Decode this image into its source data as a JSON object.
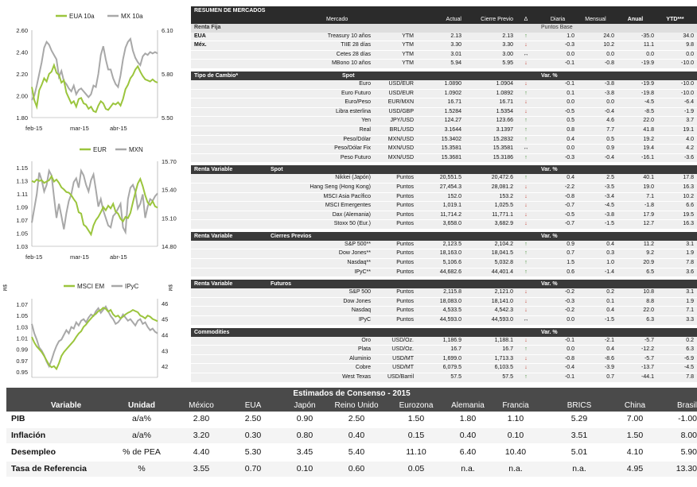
{
  "charts": [
    {
      "type": "line",
      "legend": [
        "EUA 10a",
        "MX 10a"
      ],
      "colors": {
        "series1": "#9bc53d",
        "series2": "#a8a8a8"
      },
      "left_ticks": [
        "2.60",
        "2.40",
        "2.20",
        "2.00",
        "1.80"
      ],
      "right_ticks": [
        "6.10",
        "5.80",
        "5.50"
      ],
      "x_ticks": [
        "feb-15",
        "mar-15",
        "abr-15"
      ],
      "left_range": [
        1.8,
        2.6
      ],
      "right_range": [
        5.5,
        6.1
      ],
      "series1": [
        2.08,
        1.96,
        1.9,
        2.05,
        2.1,
        2.16,
        2.13,
        2.2,
        2.22,
        2.28,
        2.21,
        2.19,
        2.12,
        2.14,
        2.03,
        1.98,
        1.93,
        1.95,
        1.9,
        1.97,
        1.98,
        1.93,
        1.92,
        1.88,
        1.9,
        1.86,
        1.85,
        1.91,
        1.95,
        1.93,
        1.88,
        1.87,
        1.9,
        1.93,
        1.92,
        1.94,
        1.91,
        1.97,
        2.06,
        2.1,
        2.16,
        2.19,
        2.24,
        2.27,
        2.22,
        2.18,
        2.15,
        2.14,
        2.13,
        2.15,
        2.13,
        2.12
      ],
      "series2": [
        5.62,
        5.65,
        5.72,
        5.8,
        5.88,
        5.98,
        6.02,
        6.0,
        5.96,
        5.93,
        5.9,
        5.78,
        5.82,
        5.75,
        5.73,
        5.7,
        5.68,
        5.72,
        5.66,
        5.69,
        5.7,
        5.68,
        5.66,
        5.64,
        5.66,
        5.72,
        5.71,
        5.8,
        5.93,
        5.99,
        5.9,
        5.83,
        5.83,
        5.77,
        5.73,
        5.71,
        5.79,
        5.9,
        5.98,
        6.02,
        6.04,
        5.96,
        5.91,
        5.88,
        5.86,
        5.92,
        5.94,
        5.93,
        5.95,
        5.94,
        5.95,
        5.94
      ]
    },
    {
      "type": "line",
      "legend": [
        "EUR",
        "MXN"
      ],
      "colors": {
        "series1": "#9bc53d",
        "series2": "#a8a8a8"
      },
      "left_ticks": [
        "1.15",
        "1.13",
        "1.11",
        "1.09",
        "1.07",
        "1.05",
        "1.03"
      ],
      "right_ticks": [
        "15.70",
        "15.40",
        "15.10",
        "14.80"
      ],
      "x_ticks": [
        "feb-15",
        "mar-15",
        "abr-15"
      ],
      "left_range": [
        1.03,
        1.16
      ],
      "right_range": [
        14.8,
        15.7
      ],
      "series1": [
        1.13,
        1.128,
        1.132,
        1.13,
        1.131,
        1.127,
        1.129,
        1.131,
        1.137,
        1.129,
        1.132,
        1.127,
        1.12,
        1.117,
        1.113,
        1.112,
        1.108,
        1.102,
        1.097,
        1.082,
        1.08,
        1.063,
        1.06,
        1.054,
        1.048,
        1.062,
        1.07,
        1.075,
        1.082,
        1.09,
        1.085,
        1.092,
        1.088,
        1.095,
        1.083,
        1.08,
        1.072,
        1.068,
        1.075,
        1.073,
        1.081,
        1.097,
        1.112,
        1.126,
        1.133,
        1.122,
        1.108,
        1.097,
        1.093,
        1.099,
        1.091,
        1.089
      ],
      "series2": [
        15.05,
        15.2,
        15.35,
        15.58,
        15.5,
        15.38,
        15.45,
        15.6,
        15.55,
        15.32,
        15.1,
        15.25,
        15.12,
        14.98,
        15.15,
        15.28,
        15.35,
        15.48,
        15.52,
        15.42,
        15.6,
        15.55,
        15.45,
        15.38,
        15.5,
        15.56,
        15.4,
        15.22,
        15.3,
        15.18,
        15.1,
        15.02,
        15.0,
        15.12,
        15.15,
        15.2,
        15.25,
        15.0,
        14.95,
        15.3,
        15.42,
        15.45,
        15.38,
        15.2,
        15.25,
        15.35,
        15.1,
        15.22,
        15.3,
        15.28,
        15.33,
        15.36
      ]
    },
    {
      "type": "line",
      "legend": [
        "MSCI EM",
        "IPyC"
      ],
      "legend_marks": [
        "$M",
        "$M"
      ],
      "colors": {
        "series1": "#9bc53d",
        "series2": "#a8a8a8"
      },
      "left_ticks": [
        "1.07",
        "1.05",
        "1.03",
        "1.01",
        "0.99",
        "0.97",
        "0.95"
      ],
      "right_ticks": [
        "46",
        "45",
        "44",
        "43",
        "42"
      ],
      "left_range": [
        0.94,
        1.08
      ],
      "right_range": [
        41.3,
        46.3
      ],
      "series1": [
        1.012,
        1.002,
        0.995,
        0.99,
        0.985,
        0.978,
        0.97,
        0.962,
        0.958,
        0.96,
        0.955,
        0.965,
        0.978,
        0.985,
        0.99,
        0.995,
        1.0,
        1.005,
        1.012,
        1.018,
        1.022,
        1.03,
        1.034,
        1.04,
        1.045,
        1.05,
        1.053,
        1.058,
        1.06,
        1.064,
        1.062,
        1.057,
        1.06,
        1.052,
        1.048,
        1.05,
        1.045,
        1.048,
        1.052,
        1.055,
        1.057,
        1.06,
        1.058,
        1.056,
        1.05,
        1.048,
        1.045,
        1.05,
        1.048,
        1.044,
        1.042,
        1.04
      ],
      "series2": [
        44.7,
        44.1,
        43.7,
        43.2,
        43.0,
        42.7,
        42.3,
        42.0,
        42.4,
        42.9,
        43.3,
        43.6,
        43.7,
        44.0,
        44.3,
        44.1,
        44.5,
        44.4,
        44.8,
        44.6,
        44.9,
        45.0,
        44.8,
        45.1,
        45.3,
        45.2,
        45.5,
        45.7,
        45.4,
        45.6,
        45.8,
        45.5,
        45.2,
        45.0,
        44.7,
        44.8,
        45.0,
        45.3,
        45.1,
        44.9,
        45.0,
        44.8,
        44.6,
        44.9,
        45.0,
        44.7,
        44.8,
        44.5,
        44.3,
        44.4,
        44.2,
        44.1
      ]
    }
  ],
  "market": {
    "title": "RESUMEN DE MERCADOS",
    "headers": {
      "mercado": "Mercado",
      "actual": "Actual",
      "cierre": "Cierre Previo",
      "delta": "Δ",
      "diaria": "Diaria",
      "mensual": "Mensual",
      "anual": "Anual",
      "ytd": "YTD***"
    },
    "sections": [
      {
        "title": "Renta Fija",
        "subtitle": "",
        "right_label": "Puntos Base",
        "rows": [
          {
            "pre": "EUA",
            "name": "Treasury 10 años",
            "unit": "YTM",
            "actual": "2.13",
            "cierre": "2.13",
            "dir": "up",
            "d": "1.0",
            "m": "24.0",
            "a": "-35.0",
            "y": "34.0"
          },
          {
            "pre": "Méx.",
            "name": "TIIE 28 días",
            "unit": "YTM",
            "actual": "3.30",
            "cierre": "3.30",
            "dir": "down",
            "d": "-0.3",
            "m": "10.2",
            "a": "11.1",
            "y": "9.8"
          },
          {
            "pre": "",
            "name": "Cetes 28 días",
            "unit": "YTM",
            "actual": "3.01",
            "cierre": "3.00",
            "dir": "flat",
            "d": "0.0",
            "m": "0.0",
            "a": "0.0",
            "y": "0.0"
          },
          {
            "pre": "",
            "name": "MBono 10 años",
            "unit": "YTM",
            "actual": "5.94",
            "cierre": "5.95",
            "dir": "down",
            "d": "-0.1",
            "m": "-0.8",
            "a": "-19.9",
            "y": "-10.0"
          }
        ]
      },
      {
        "title": "Tipo de Cambio*",
        "subtitle": "Spot",
        "right_label": "Var. %",
        "rows": [
          {
            "pre": "",
            "name": "Euro",
            "unit": "USD/EUR",
            "actual": "1.0890",
            "cierre": "1.0904",
            "dir": "down",
            "d": "-0.1",
            "m": "-3.8",
            "a": "-19.9",
            "y": "-10.0"
          },
          {
            "pre": "",
            "name": "Euro Futuro",
            "unit": "USD/EUR",
            "actual": "1.0902",
            "cierre": "1.0892",
            "dir": "up",
            "d": "0.1",
            "m": "-3.8",
            "a": "-19.8",
            "y": "-10.0"
          },
          {
            "pre": "",
            "name": "Euro/Peso",
            "unit": "EUR/MXN",
            "actual": "16.71",
            "cierre": "16.71",
            "dir": "down",
            "d": "0.0",
            "m": "0.0",
            "a": "-4.5",
            "y": "-6.4"
          },
          {
            "pre": "",
            "name": "Libra esterlina",
            "unit": "USD/GBP",
            "actual": "1.5284",
            "cierre": "1.5354",
            "dir": "down",
            "d": "-0.5",
            "m": "-0.4",
            "a": "-8.5",
            "y": "-1.9"
          },
          {
            "pre": "",
            "name": "Yen",
            "unit": "JPY/USD",
            "actual": "124.27",
            "cierre": "123.66",
            "dir": "up",
            "d": "0.5",
            "m": "4.6",
            "a": "22.0",
            "y": "3.7"
          },
          {
            "pre": "",
            "name": "Real",
            "unit": "BRL/USD",
            "actual": "3.1644",
            "cierre": "3.1397",
            "dir": "up",
            "d": "0.8",
            "m": "7.7",
            "a": "41.8",
            "y": "19.1"
          },
          {
            "pre": "",
            "name": "Peso/Dólar",
            "unit": "MXN/USD",
            "actual": "15.3402",
            "cierre": "15.2832",
            "dir": "up",
            "d": "0.4",
            "m": "0.5",
            "a": "19.2",
            "y": "4.0"
          },
          {
            "pre": "",
            "name": "Peso/Dólar Fix",
            "unit": "MXN/USD",
            "actual": "15.3581",
            "cierre": "15.3581",
            "dir": "flat",
            "d": "0.0",
            "m": "0.9",
            "a": "19.4",
            "y": "4.2"
          },
          {
            "pre": "",
            "name": "Peso Futuro",
            "unit": "MXN/USD",
            "actual": "15.3681",
            "cierre": "15.3186",
            "dir": "up",
            "d": "-0.3",
            "m": "-0.4",
            "a": "-16.1",
            "y": "-3.6"
          }
        ]
      },
      {
        "title": "Renta Variable",
        "subtitle": "Spot",
        "right_label": "Var. %",
        "rows": [
          {
            "pre": "",
            "name": "Nikkei (Japón)",
            "unit": "Puntos",
            "actual": "20,551.5",
            "cierre": "20,472.6",
            "dir": "up",
            "d": "0.4",
            "m": "2.5",
            "a": "40.1",
            "y": "17.8"
          },
          {
            "pre": "",
            "name": "Hang Seng (Hong Kong)",
            "unit": "Puntos",
            "actual": "27,454.3",
            "cierre": "28,081.2",
            "dir": "down",
            "d": "-2.2",
            "m": "-3.5",
            "a": "19.0",
            "y": "16.3"
          },
          {
            "pre": "",
            "name": "MSCI Asia Pacífico",
            "unit": "Puntos",
            "actual": "152.0",
            "cierre": "153.2",
            "dir": "down",
            "d": "-0.8",
            "m": "-3.4",
            "a": "7.1",
            "y": "10.2"
          },
          {
            "pre": "",
            "name": "MSCI Emergentes",
            "unit": "Puntos",
            "actual": "1,019.1",
            "cierre": "1,025.5",
            "dir": "down",
            "d": "-0.7",
            "m": "-4.5",
            "a": "-1.8",
            "y": "6.6"
          },
          {
            "pre": "",
            "name": "Dax (Alemania)",
            "unit": "Puntos",
            "actual": "11,714.2",
            "cierre": "11,771.1",
            "dir": "down",
            "d": "-0.5",
            "m": "-3.8",
            "a": "17.9",
            "y": "19.5"
          },
          {
            "pre": "",
            "name": "Stoxx 50 (Eur.)",
            "unit": "Puntos",
            "actual": "3,658.0",
            "cierre": "3,682.9",
            "dir": "down",
            "d": "-0.7",
            "m": "-1.5",
            "a": "12.7",
            "y": "16.3"
          }
        ]
      },
      {
        "title": "Renta Variable",
        "subtitle": "Cierres Previos",
        "right_label": "Var. %",
        "rows": [
          {
            "pre": "",
            "name": "S&P 500**",
            "unit": "Puntos",
            "actual": "2,123.5",
            "cierre": "2,104.2",
            "dir": "up",
            "d": "0.9",
            "m": "0.4",
            "a": "11.2",
            "y": "3.1"
          },
          {
            "pre": "",
            "name": "Dow Jones**",
            "unit": "Puntos",
            "actual": "18,163.0",
            "cierre": "18,041.5",
            "dir": "up",
            "d": "0.7",
            "m": "0.3",
            "a": "9.2",
            "y": "1.9"
          },
          {
            "pre": "",
            "name": "Nasdaq**",
            "unit": "Puntos",
            "actual": "5,106.6",
            "cierre": "5,032.8",
            "dir": "up",
            "d": "1.5",
            "m": "1.0",
            "a": "20.9",
            "y": "7.8"
          },
          {
            "pre": "",
            "name": "IPyC**",
            "unit": "Puntos",
            "actual": "44,682.6",
            "cierre": "44,401.4",
            "dir": "up",
            "d": "0.6",
            "m": "-1.4",
            "a": "6.5",
            "y": "3.6"
          }
        ]
      },
      {
        "title": "Renta Variable",
        "subtitle": "Futuros",
        "right_label": "Var. %",
        "rows": [
          {
            "pre": "",
            "name": "S&P 500",
            "unit": "Puntos",
            "actual": "2,115.8",
            "cierre": "2,121.0",
            "dir": "down",
            "d": "-0.2",
            "m": "0.2",
            "a": "10.8",
            "y": "3.1"
          },
          {
            "pre": "",
            "name": "Dow Jones",
            "unit": "Puntos",
            "actual": "18,083.0",
            "cierre": "18,141.0",
            "dir": "down",
            "d": "-0.3",
            "m": "0.1",
            "a": "8.8",
            "y": "1.9"
          },
          {
            "pre": "",
            "name": "Nasdaq",
            "unit": "Puntos",
            "actual": "4,533.5",
            "cierre": "4,542.3",
            "dir": "down",
            "d": "-0.2",
            "m": "0.4",
            "a": "22.0",
            "y": "7.1"
          },
          {
            "pre": "",
            "name": "IPyC",
            "unit": "Puntos",
            "actual": "44,593.0",
            "cierre": "44,593.0",
            "dir": "flat",
            "d": "0.0",
            "m": "-1.5",
            "a": "6.3",
            "y": "3.3"
          }
        ]
      },
      {
        "title": "Commodities",
        "subtitle": "",
        "right_label": "Var. %",
        "rows": [
          {
            "pre": "",
            "name": "Oro",
            "unit": "USD/Oz.",
            "actual": "1,186.9",
            "cierre": "1,188.1",
            "dir": "down",
            "d": "-0.1",
            "m": "-2.1",
            "a": "-5.7",
            "y": "0.2"
          },
          {
            "pre": "",
            "name": "Plata",
            "unit": "USD/Oz.",
            "actual": "16.7",
            "cierre": "16.7",
            "dir": "up",
            "d": "0.0",
            "m": "0.4",
            "a": "-12.2",
            "y": "6.3"
          },
          {
            "pre": "",
            "name": "Aluminio",
            "unit": "USD/MT",
            "actual": "1,699.0",
            "cierre": "1,713.3",
            "dir": "down",
            "d": "-0.8",
            "m": "-8.6",
            "a": "-5.7",
            "y": "-6.9"
          },
          {
            "pre": "",
            "name": "Cobre",
            "unit": "USD/MT",
            "actual": "6,079.5",
            "cierre": "6,103.5",
            "dir": "down",
            "d": "-0.4",
            "m": "-3.9",
            "a": "-13.7",
            "y": "-4.5"
          },
          {
            "pre": "",
            "name": "West Texas",
            "unit": "USD/Barril",
            "actual": "57.5",
            "cierre": "57.5",
            "dir": "up",
            "d": "-0.1",
            "m": "0.7",
            "a": "-44.1",
            "y": "7.8"
          }
        ]
      }
    ]
  },
  "consensus": {
    "title": "Estimados de Consenso - 2015",
    "headers": [
      "Variable",
      "Unidad",
      "México",
      "EUA",
      "Japón",
      "Reino Unido",
      "Eurozona",
      "Alemania",
      "Francia",
      "BRICS",
      "China",
      "Brasil"
    ],
    "rows": [
      {
        "label": "PIB",
        "unit": "a/a%",
        "values": [
          "2.80",
          "2.50",
          "0.90",
          "2.50",
          "1.50",
          "1.80",
          "1.10",
          "5.29",
          "7.00",
          "-1.00"
        ]
      },
      {
        "label": "Inflación",
        "unit": "a/a%",
        "values": [
          "3.20",
          "0.30",
          "0.80",
          "0.40",
          "0.15",
          "0.40",
          "0.10",
          "3.51",
          "1.50",
          "8.00"
        ]
      },
      {
        "label": "Desempleo",
        "unit": "% de PEA",
        "values": [
          "4.40",
          "5.30",
          "3.45",
          "5.40",
          "11.10",
          "6.40",
          "10.40",
          "5.01",
          "4.10",
          "5.90"
        ]
      },
      {
        "label": "Tasa de Referencia",
        "unit": "%",
        "values": [
          "3.55",
          "0.70",
          "0.10",
          "0.60",
          "0.05",
          "n.a.",
          "n.a.",
          "n.a.",
          "4.95",
          "13.30"
        ]
      }
    ]
  }
}
